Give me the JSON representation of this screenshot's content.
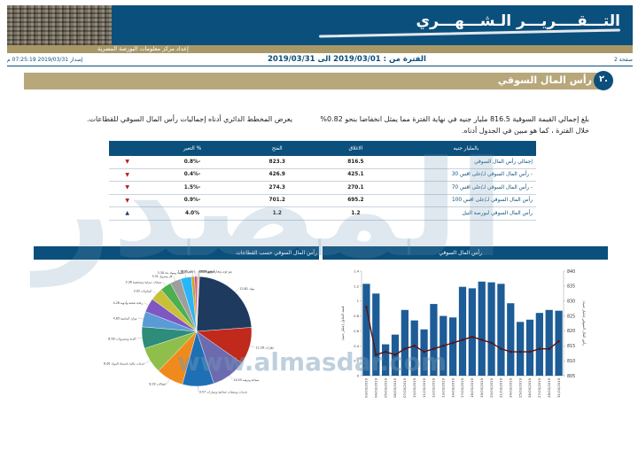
{
  "header": {
    "title": "التـــقــــريـــر الـشـــهـــري",
    "subtitle": "إعداد مركز معلومات البورصة المصرية"
  },
  "info": {
    "issue": "إصدار 2019/03/31 07:25:19 م",
    "period": "الفترة من : 2019/03/01 الى 2019/03/31",
    "page": "صفحة 2"
  },
  "section": {
    "number": "٢.",
    "title": "رأس المال السوقي"
  },
  "paragraphs": {
    "right": "بلغ إجمالي القيمة السوقية 816.5 مليار جنيه في نهاية الفترة مما يمثل انخفاضا بنحو 0.82% خلال الفترة ، كما هو مبين في الجدول أدناه.",
    "left": "يعرض المخطط الدائري أدناه إجماليات رأس المال السوقي للقطاعات."
  },
  "table": {
    "headers": [
      "بالمليار جنيه",
      "الاغلاق",
      "الفتح",
      "% التغير"
    ],
    "rows": [
      {
        "name": "إجمالي رأس المال السوقي",
        "close": "816.5",
        "open": "823.3",
        "change": "-0.8%",
        "dir": "down"
      },
      {
        "name": "- رأس المال السوقي لـ/على اقس 30",
        "close": "425.1",
        "open": "426.9",
        "change": "-0.4%",
        "dir": "down"
      },
      {
        "name": "- رأس المال السوقي لـ/على اقس 70",
        "close": "270.1",
        "open": "274.3",
        "change": "-1.5%",
        "dir": "down"
      },
      {
        "name": "رأس المال السوقي لـ/على اقس 100",
        "close": "695.2",
        "open": "701.2",
        "change": "-0.9%",
        "dir": "down"
      },
      {
        "name": "رأس المال السوقي لبورصة النيل",
        "close": "1.2",
        "open": "1.2",
        "change": "4.0%",
        "dir": "up"
      }
    ]
  },
  "pie_header": "رأس المال السوقي حسب القطاعات",
  "bar_header": "رأس المال السوقي",
  "watermark": {
    "text": "المصدر",
    "url": "www.almasdar.com"
  },
  "chart_data": [
    {
      "type": "pie",
      "title": "رأس المال السوقي حسب القطاعات",
      "slices": [
        {
          "label": "بنوك",
          "value": 23.81,
          "color": "#1f3a5f"
        },
        {
          "label": "عقارات",
          "value": 11.26,
          "color": "#c0291b"
        },
        {
          "label": "سياحة وترفيه",
          "value": 10.55,
          "color": "#6d6bb0"
        },
        {
          "label": "خدمات ومنتجات صناعية وسيارات",
          "value": 9.57,
          "color": "#1f6fb5"
        },
        {
          "label": "اتصالات",
          "value": 8.29,
          "color": "#f08a1c"
        },
        {
          "label": "خدمات مالية باستثناء البنوك",
          "value": 8.0,
          "color": "#8fbf4a"
        },
        {
          "label": "أغذية ومشروبات",
          "value": 6.58,
          "color": "#2d8c7a"
        },
        {
          "label": "موارد أساسية",
          "value": 4.65,
          "color": "#5b9bd5"
        },
        {
          "label": "رعاية صحية وأدوية",
          "value": 4.28,
          "color": "#7e57c2"
        },
        {
          "label": "كيماويات",
          "value": 3.92,
          "color": "#c9c03a"
        },
        {
          "label": "منتجات منزلية وشخصية",
          "value": 3.36,
          "color": "#4caf50"
        },
        {
          "label": "غاز وبترول",
          "value": 3.31,
          "color": "#9e9e9e"
        },
        {
          "label": "تشييد ومواد بناء",
          "value": 3.3,
          "color": "#29b6f6"
        },
        {
          "label": "تجزئة",
          "value": 1.01,
          "color": "#d4a017"
        },
        {
          "label": "إعلام",
          "value": 0.65,
          "color": "#ab47bc"
        },
        {
          "label": "موزعون وتجارة تجزئة",
          "value": 0.42,
          "color": "#ff7043"
        },
        {
          "label": "مرافق",
          "value": 0.22,
          "color": "#8d6e63"
        },
        {
          "label": "أخرى",
          "value": 0.14,
          "color": "#795548"
        }
      ]
    },
    {
      "type": "bar",
      "title": "رأس المال السوقي",
      "categories": [
        "03/03/2019",
        "04/03/2019",
        "05/03/2019",
        "06/03/2019",
        "07/03/2019",
        "10/03/2019",
        "11/03/2019",
        "12/03/2019",
        "13/03/2019",
        "14/03/2019",
        "17/03/2019",
        "18/03/2019",
        "19/03/2019",
        "20/03/2019",
        "21/03/2019",
        "24/03/2019",
        "25/03/2019",
        "26/03/2019",
        "27/03/2019",
        "28/03/2019",
        "31/03/2019"
      ],
      "series": [
        {
          "name": "قيمة التداول (مليار جنيه)",
          "kind": "bar",
          "axis": "left",
          "values": [
            1.23,
            1.1,
            0.42,
            0.55,
            0.88,
            0.74,
            0.62,
            0.96,
            0.8,
            0.78,
            1.19,
            1.17,
            1.26,
            1.25,
            1.23,
            0.97,
            0.72,
            0.75,
            0.84,
            0.88,
            0.87
          ]
        },
        {
          "name": "رأس المال السوقي (مليار جنيه)",
          "kind": "line",
          "axis": "right",
          "values": [
            828,
            812,
            813,
            812,
            814,
            815,
            813,
            814,
            815,
            816,
            817,
            818,
            817,
            816,
            814,
            813,
            813,
            813,
            814,
            814,
            816.5
          ]
        }
      ],
      "ylim_left": [
        0,
        1.4
      ],
      "ylim_right": [
        805,
        840
      ]
    }
  ]
}
